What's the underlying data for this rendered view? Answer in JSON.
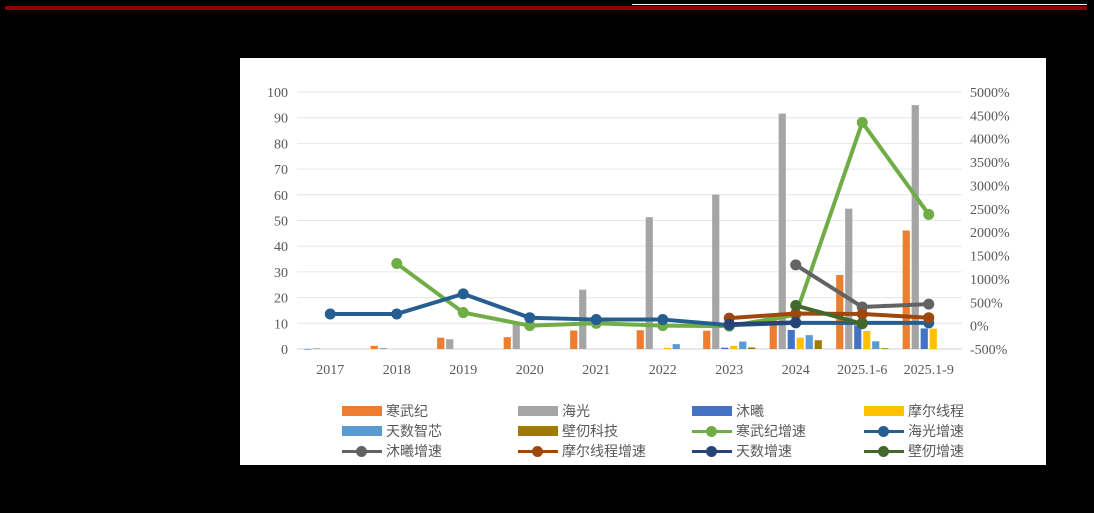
{
  "chart_data": {
    "type": "bar+line",
    "title": "",
    "xlabel": "",
    "ylabel": "",
    "categories": [
      "2017",
      "2018",
      "2019",
      "2020",
      "2021",
      "2022",
      "2023",
      "2024",
      "2025.1-6",
      "2025.1-9"
    ],
    "left_axis": {
      "min": 0,
      "max": 100,
      "step": 10,
      "ticks": [
        "0",
        "10",
        "20",
        "30",
        "40",
        "50",
        "60",
        "70",
        "80",
        "90",
        "100"
      ]
    },
    "right_axis": {
      "min": -500,
      "max": 5000,
      "step": 500,
      "ticks": [
        "-500%",
        "0%",
        "500%",
        "1000%",
        "1500%",
        "2000%",
        "2500%",
        "3000%",
        "3500%",
        "4000%",
        "4500%",
        "5000%"
      ]
    },
    "grid": true,
    "legend_position": "bottom",
    "bar_series": [
      {
        "name": "寒武纪",
        "color": "#ED7D31",
        "values": [
          0,
          1.2,
          4.4,
          4.6,
          7.2,
          7.3,
          7.1,
          11.7,
          28.8,
          46.1
        ]
      },
      {
        "name": "海光",
        "color": "#A5A5A5",
        "values": [
          0.3,
          0.4,
          3.8,
          10.2,
          23.1,
          51.3,
          60.1,
          91.6,
          54.6,
          94.9
        ]
      },
      {
        "name": "沐曦",
        "color": "#4472C4",
        "values": [
          null,
          null,
          null,
          null,
          null,
          null,
          0.5,
          7.4,
          9.2,
          8.0
        ]
      },
      {
        "name": "摩尔线程",
        "color": "#FFC000",
        "values": [
          null,
          null,
          null,
          null,
          null,
          0.5,
          1.2,
          4.4,
          7.0,
          7.9
        ]
      },
      {
        "name": "天数智芯",
        "color": "#5B9BD5",
        "values": [
          null,
          null,
          null,
          null,
          null,
          1.9,
          2.9,
          5.4,
          3.0,
          null
        ]
      },
      {
        "name": "壁仞科技",
        "color": "#9E7B00",
        "values": [
          null,
          null,
          null,
          null,
          null,
          null,
          0.6,
          3.4,
          0.3,
          null
        ]
      }
    ],
    "line_series": [
      {
        "name": "寒武纪增速",
        "color": "#70AD47",
        "unit": "%",
        "values": [
          null,
          1330,
          280,
          0,
          50,
          0,
          -10,
          230,
          4350,
          2380
        ]
      },
      {
        "name": "海光增速",
        "color": "#255E91",
        "unit": "%",
        "values": [
          250,
          250,
          680,
          170,
          130,
          130,
          10,
          60,
          60,
          60
        ]
      },
      {
        "name": "沐曦增速",
        "color": "#636363",
        "unit": "%",
        "values": [
          null,
          null,
          null,
          null,
          null,
          null,
          null,
          1300,
          400,
          460
        ]
      },
      {
        "name": "摩尔线程增速",
        "color": "#9E480E",
        "unit": "%",
        "values": [
          null,
          null,
          null,
          null,
          null,
          null,
          160,
          260,
          250,
          170
        ]
      },
      {
        "name": "天数增速",
        "color": "#264478",
        "unit": "%",
        "values": [
          null,
          null,
          null,
          null,
          null,
          null,
          30,
          70,
          null,
          null
        ]
      },
      {
        "name": "壁仞增速",
        "color": "#43682B",
        "unit": "%",
        "values": [
          null,
          null,
          null,
          null,
          null,
          null,
          null,
          430,
          40,
          null
        ]
      }
    ]
  },
  "legend": {
    "items": [
      {
        "label": "寒武纪",
        "kind": "bar",
        "color": "#ED7D31"
      },
      {
        "label": "海光",
        "kind": "bar",
        "color": "#A5A5A5"
      },
      {
        "label": "沐曦",
        "kind": "bar",
        "color": "#4472C4"
      },
      {
        "label": "摩尔线程",
        "kind": "bar",
        "color": "#FFC000"
      },
      {
        "label": "天数智芯",
        "kind": "bar",
        "color": "#5B9BD5"
      },
      {
        "label": "壁仞科技",
        "kind": "bar",
        "color": "#9E7B00"
      },
      {
        "label": "寒武纪增速",
        "kind": "line",
        "color": "#70AD47"
      },
      {
        "label": "海光增速",
        "kind": "line",
        "color": "#255E91"
      },
      {
        "label": "沐曦增速",
        "kind": "line",
        "color": "#636363"
      },
      {
        "label": "摩尔线程增速",
        "kind": "line",
        "color": "#9E480E"
      },
      {
        "label": "天数增速",
        "kind": "line",
        "color": "#264478"
      },
      {
        "label": "壁仞增速",
        "kind": "line",
        "color": "#43682B"
      }
    ]
  },
  "colors": {
    "top_bar": "#8B0000",
    "background": "#000000",
    "panel": "#FFFFFF",
    "grid": "#D9D9D9",
    "axis_text": "#595959"
  }
}
